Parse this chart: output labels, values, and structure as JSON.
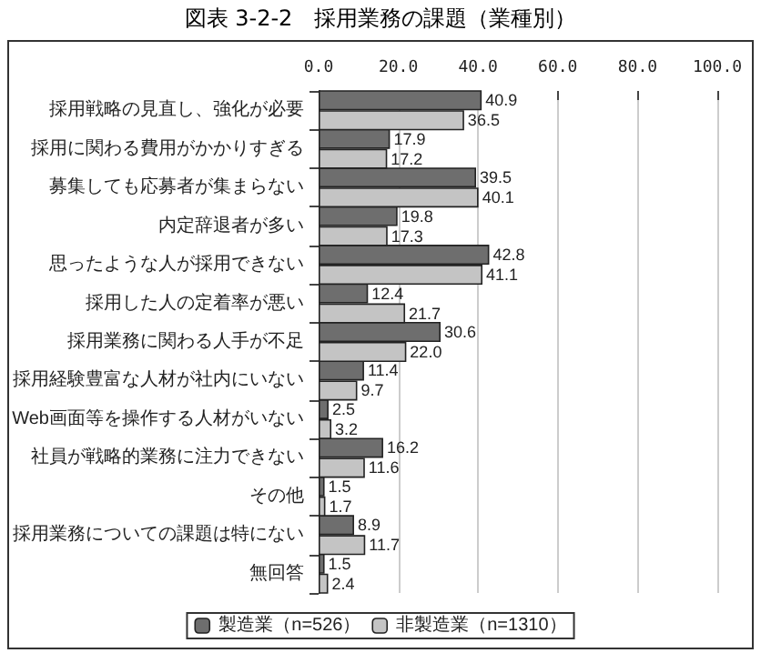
{
  "chart_data": {
    "type": "bar",
    "orientation": "horizontal",
    "title": "図表 3-2-2　採用業務の課題（業種別）",
    "categories": [
      "採用戦略の見直し、強化が必要",
      "採用に関わる費用がかかりすぎる",
      "募集しても応募者が集まらない",
      "内定辞退者が多い",
      "思ったような人が採用できない",
      "採用した人の定着率が悪い",
      "採用業務に関わる人手が不足",
      "採用経験豊富な人材が社内にいない",
      "Web画面等を操作する人材がいない",
      "社員が戦略的業務に注力できない",
      "その他",
      "採用業務についての課題は特にない",
      "無回答"
    ],
    "series": [
      {
        "name": "製造業（n=526）",
        "color": "#6e6e6e",
        "values": [
          40.9,
          17.9,
          39.5,
          19.8,
          42.8,
          12.4,
          30.6,
          11.4,
          2.5,
          16.2,
          1.5,
          8.9,
          1.5
        ],
        "value_labels": [
          "40.9",
          "17.9",
          "39.5",
          "19.8",
          "42.8",
          "12.4",
          "30.6",
          "11.4",
          "2.5",
          "16.2",
          "1.5",
          "8.9",
          "1.5"
        ]
      },
      {
        "name": "非製造業（n=1310）",
        "color": "#c4c4c4",
        "values": [
          36.5,
          17.2,
          40.1,
          17.3,
          41.1,
          21.7,
          22.0,
          9.7,
          3.2,
          11.6,
          1.7,
          11.7,
          2.4
        ],
        "value_labels": [
          "36.5",
          "17.2",
          "40.1",
          "17.3",
          "41.1",
          "21.7",
          "22.0",
          "9.7",
          "3.2",
          "11.6",
          "1.7",
          "11.7",
          "2.4"
        ]
      }
    ],
    "xlim": [
      0,
      100
    ],
    "xticks": [
      {
        "value": 0,
        "label": "0.0"
      },
      {
        "value": 20,
        "label": "20.0"
      },
      {
        "value": 40,
        "label": "40.0"
      },
      {
        "value": 60,
        "label": "60.0"
      },
      {
        "value": 80,
        "label": "80.0"
      },
      {
        "value": 100,
        "label": "100.0"
      }
    ],
    "grid": "x",
    "legend": "bottom"
  }
}
